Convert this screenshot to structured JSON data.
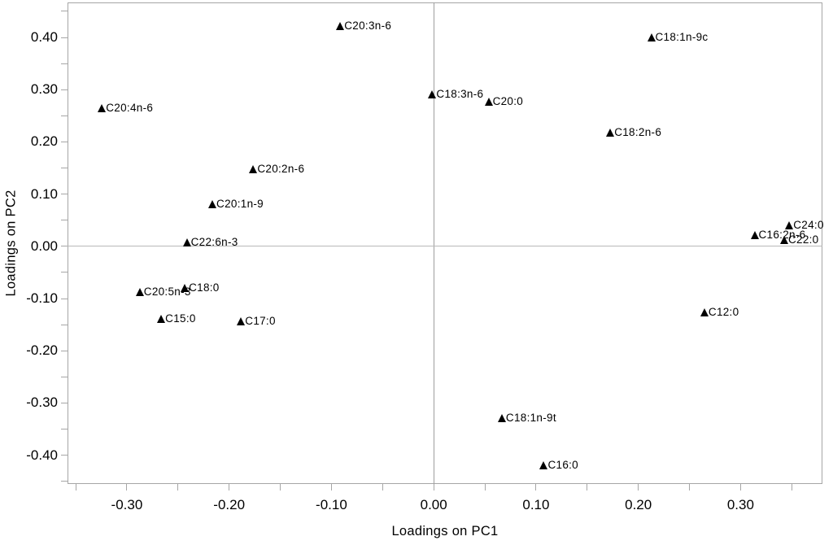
{
  "chart_data": {
    "type": "scatter",
    "title": "",
    "xlabel": "Loadings on PC1",
    "ylabel": "Loadings on PC2",
    "xlim": [
      -0.358,
      0.38
    ],
    "ylim": [
      -0.455,
      0.467
    ],
    "grid": false,
    "legend": "none",
    "marker": "filled-triangle",
    "marker_glyph": "triangle-up",
    "zero_lines": true,
    "colors": {
      "marker": "#000000",
      "text": "#000000",
      "axis_frame": "#a6a6a6",
      "zero_line": "#9e9e9e",
      "background": "#ffffff"
    },
    "x_major_ticks": [
      -0.3,
      -0.2,
      -0.1,
      0.0,
      0.1,
      0.2,
      0.3
    ],
    "x_tick_labels": [
      "-0.30",
      "-0.20",
      "-0.10",
      "0.00",
      "0.10",
      "0.20",
      "0.30"
    ],
    "x_minor_ticks": [
      -0.35,
      -0.3,
      -0.25,
      -0.2,
      -0.15,
      -0.1,
      -0.05,
      0.0,
      0.05,
      0.1,
      0.15,
      0.2,
      0.25,
      0.3,
      0.35
    ],
    "y_major_ticks": [
      0.4,
      0.3,
      0.2,
      0.1,
      0.0,
      -0.1,
      -0.2,
      -0.3,
      -0.4
    ],
    "y_tick_labels": [
      "0.40",
      "0.30",
      "0.20",
      "0.10",
      "0.00",
      "-0.10",
      "-0.20",
      "-0.30",
      "-0.40"
    ],
    "y_minor_ticks": [
      -0.45,
      -0.4,
      -0.35,
      -0.3,
      -0.25,
      -0.2,
      -0.15,
      -0.1,
      -0.05,
      0.0,
      0.05,
      0.1,
      0.15,
      0.2,
      0.25,
      0.3,
      0.35,
      0.4,
      0.45
    ],
    "points": [
      {
        "label": "C20:3n-6",
        "x": -0.091,
        "y": 0.422
      },
      {
        "label": "C18:1n-9c",
        "x": 0.213,
        "y": 0.4
      },
      {
        "label": "C18:3n-6",
        "x": -0.001,
        "y": 0.291
      },
      {
        "label": "C20:0",
        "x": 0.054,
        "y": 0.277
      },
      {
        "label": "C20:4n-6",
        "x": -0.324,
        "y": 0.265
      },
      {
        "label": "C18:2n-6",
        "x": 0.173,
        "y": 0.218
      },
      {
        "label": "C20:2n-6",
        "x": -0.176,
        "y": 0.147
      },
      {
        "label": "C20:1n-9",
        "x": -0.216,
        "y": 0.081
      },
      {
        "label": "C24:0",
        "x": 0.348,
        "y": 0.04
      },
      {
        "label": "C16:2n-6",
        "x": 0.314,
        "y": 0.022
      },
      {
        "label": "C22:0",
        "x": 0.343,
        "y": 0.012
      },
      {
        "label": "C22:6n-3",
        "x": -0.241,
        "y": 0.008
      },
      {
        "label": "C18:0",
        "x": -0.243,
        "y": -0.08
      },
      {
        "label": "C20:5n-3",
        "x": -0.287,
        "y": -0.087
      },
      {
        "label": "C12:0",
        "x": 0.265,
        "y": -0.126
      },
      {
        "label": "C15:0",
        "x": -0.266,
        "y": -0.139
      },
      {
        "label": "C17:0",
        "x": -0.188,
        "y": -0.143
      },
      {
        "label": "C18:1n-9t",
        "x": 0.067,
        "y": -0.329
      },
      {
        "label": "C16:0",
        "x": 0.108,
        "y": -0.419
      }
    ]
  }
}
